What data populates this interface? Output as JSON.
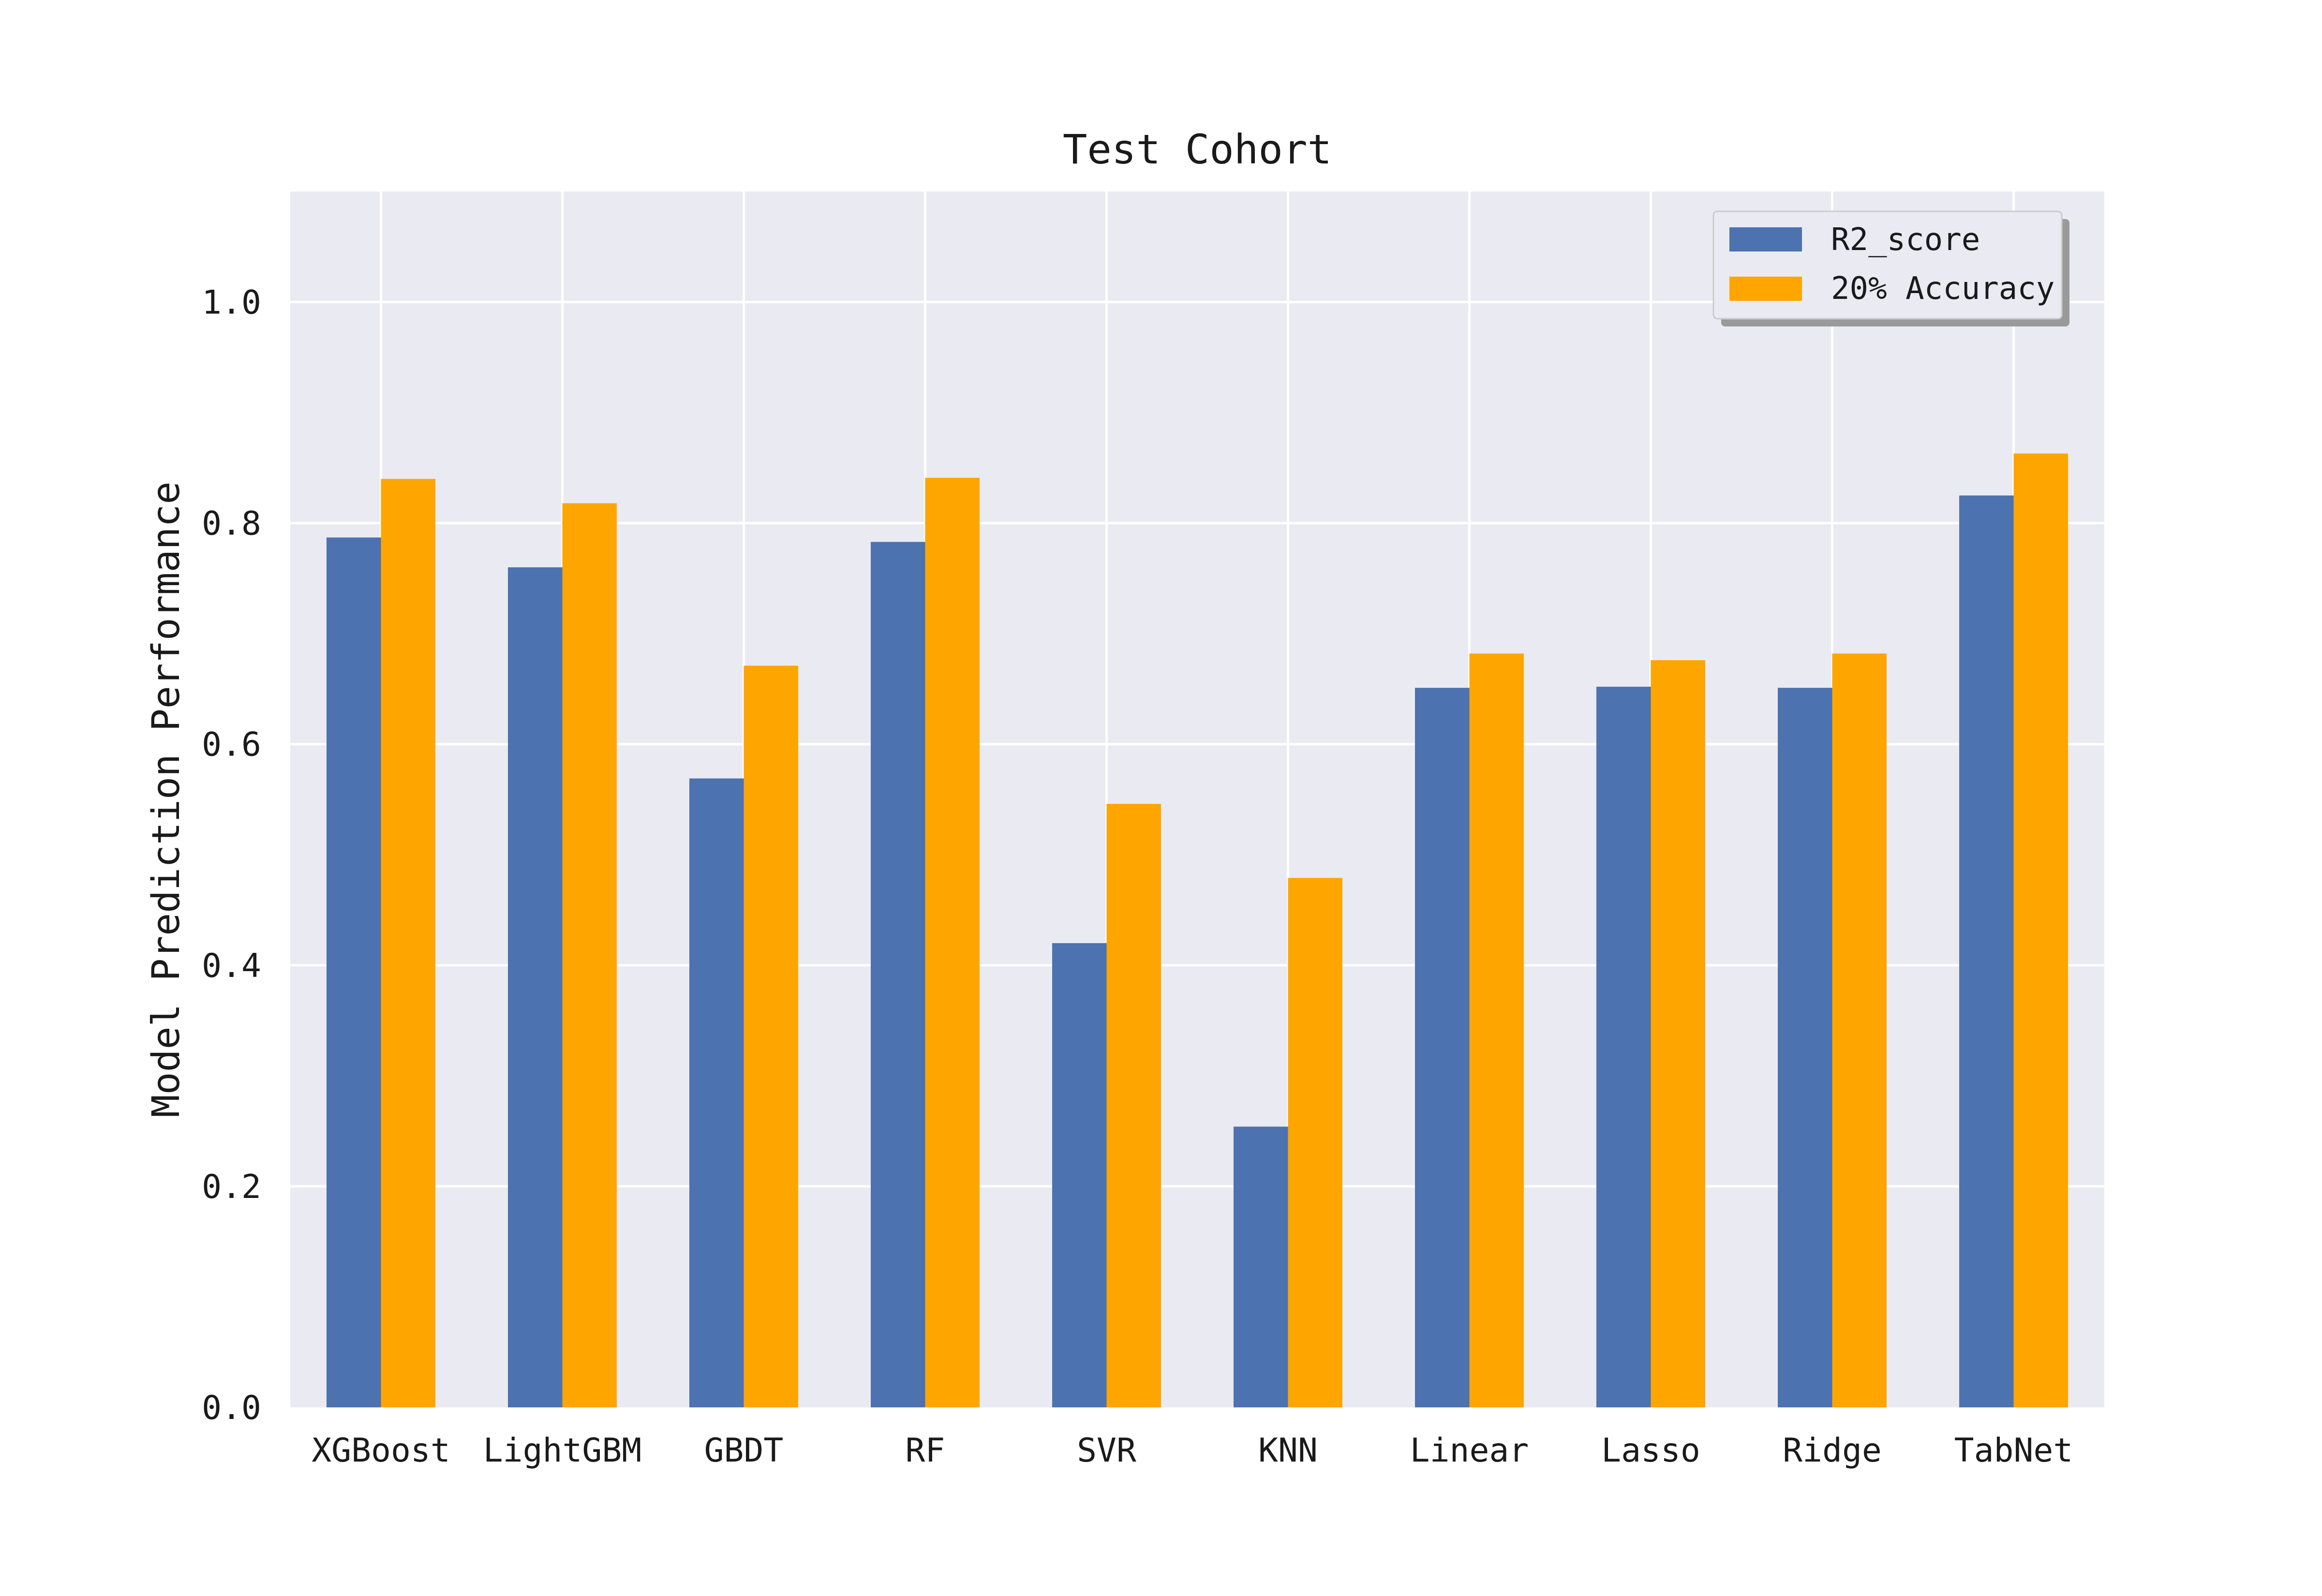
{
  "chart_data": {
    "type": "bar",
    "title": "Test Cohort",
    "xlabel": "",
    "ylabel": "Model Prediction Performance",
    "categories": [
      "XGBoost",
      "LightGBM",
      "GBDT",
      "RF",
      "SVR",
      "KNN",
      "Linear",
      "Lasso",
      "Ridge",
      "TabNet"
    ],
    "series": [
      {
        "name": "R2_score",
        "color": "#4c72b0",
        "values": [
          0.787,
          0.76,
          0.569,
          0.783,
          0.42,
          0.254,
          0.651,
          0.652,
          0.651,
          0.825
        ]
      },
      {
        "name": "20% Accuracy",
        "color": "#ffa500",
        "values": [
          0.84,
          0.818,
          0.671,
          0.841,
          0.546,
          0.479,
          0.682,
          0.676,
          0.682,
          0.863
        ]
      }
    ],
    "ylim": [
      0,
      1.1
    ],
    "yticks": [
      "0.0",
      "0.2",
      "0.4",
      "0.6",
      "0.8",
      "1.0"
    ],
    "grid": true,
    "legend_position": "top-right",
    "background": "#eaeaf2"
  }
}
